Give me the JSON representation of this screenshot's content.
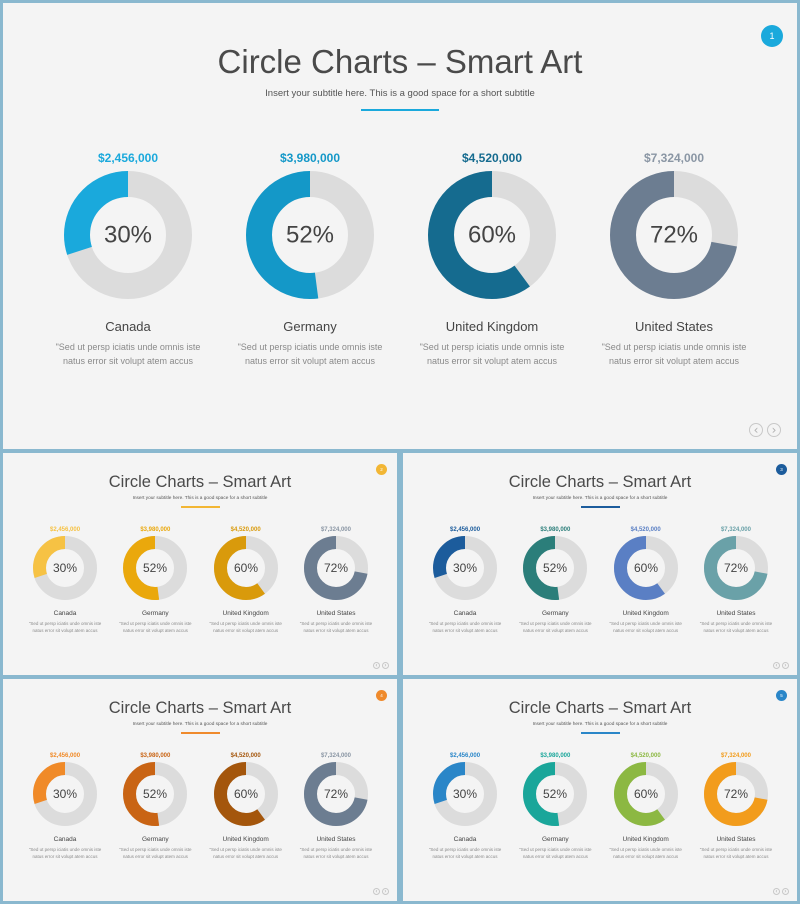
{
  "slides": [
    {
      "id": "main",
      "title": "Circle Charts – Smart Art",
      "subtitle": "Insert your subtitle here. This is a good space for a short subtitle",
      "page_number": "1",
      "accent": "#1aa9dc",
      "cards": [
        {
          "amount": "$2,456,000",
          "percent_label": "30%",
          "percent": 30,
          "country": "Canada",
          "color": "#1aa9dc",
          "amount_color": "#1aa9dc"
        },
        {
          "amount": "$3,980,000",
          "percent_label": "52%",
          "percent": 52,
          "country": "Germany",
          "color": "#1498c8",
          "amount_color": "#1498c8"
        },
        {
          "amount": "$4,520,000",
          "percent_label": "60%",
          "percent": 60,
          "country": "United Kingdom",
          "color": "#156b8f",
          "amount_color": "#156b8f"
        },
        {
          "amount": "$7,324,000",
          "percent_label": "72%",
          "percent": 72,
          "country": "United States",
          "color": "#6c7d91",
          "amount_color": "#8a96a4"
        }
      ]
    },
    {
      "id": "yellow",
      "title": "Circle Charts – Smart Art",
      "subtitle": "Insert your subtitle here. This is a good space for a short subtitle",
      "page_number": "2",
      "accent": "#f2b634",
      "cards": [
        {
          "amount": "$2,456,000",
          "percent_label": "30%",
          "percent": 30,
          "country": "Canada",
          "color": "#f6c244",
          "amount_color": "#f6c244"
        },
        {
          "amount": "$3,980,000",
          "percent_label": "52%",
          "percent": 52,
          "country": "Germany",
          "color": "#eaa80c",
          "amount_color": "#eaa80c"
        },
        {
          "amount": "$4,520,000",
          "percent_label": "60%",
          "percent": 60,
          "country": "United Kingdom",
          "color": "#d99a0b",
          "amount_color": "#d99a0b"
        },
        {
          "amount": "$7,324,000",
          "percent_label": "72%",
          "percent": 72,
          "country": "United States",
          "color": "#6c7d91",
          "amount_color": "#8a96a4"
        }
      ]
    },
    {
      "id": "blue-teal",
      "title": "Circle Charts – Smart Art",
      "subtitle": "Insert your subtitle here. This is a good space for a short subtitle",
      "page_number": "3",
      "accent": "#1c5c9c",
      "cards": [
        {
          "amount": "$2,456,000",
          "percent_label": "30%",
          "percent": 30,
          "country": "Canada",
          "color": "#1c5c9c",
          "amount_color": "#1c5c9c"
        },
        {
          "amount": "$3,980,000",
          "percent_label": "52%",
          "percent": 52,
          "country": "Germany",
          "color": "#2b7e7a",
          "amount_color": "#2b7e7a"
        },
        {
          "amount": "$4,520,000",
          "percent_label": "60%",
          "percent": 60,
          "country": "United Kingdom",
          "color": "#5a7fc4",
          "amount_color": "#5a7fc4"
        },
        {
          "amount": "$7,324,000",
          "percent_label": "72%",
          "percent": 72,
          "country": "United States",
          "color": "#6aa1a8",
          "amount_color": "#6aa1a8"
        }
      ]
    },
    {
      "id": "orange",
      "title": "Circle Charts – Smart Art",
      "subtitle": "Insert your subtitle here. This is a good space for a short subtitle",
      "page_number": "4",
      "accent": "#ef8a2c",
      "cards": [
        {
          "amount": "$2,456,000",
          "percent_label": "30%",
          "percent": 30,
          "country": "Canada",
          "color": "#f08a28",
          "amount_color": "#f08a28"
        },
        {
          "amount": "$3,980,000",
          "percent_label": "52%",
          "percent": 52,
          "country": "Germany",
          "color": "#c96414",
          "amount_color": "#c96414"
        },
        {
          "amount": "$4,520,000",
          "percent_label": "60%",
          "percent": 60,
          "country": "United Kingdom",
          "color": "#a4560c",
          "amount_color": "#a4560c"
        },
        {
          "amount": "$7,324,000",
          "percent_label": "72%",
          "percent": 72,
          "country": "United States",
          "color": "#6c7d91",
          "amount_color": "#8a96a4"
        }
      ]
    },
    {
      "id": "multi",
      "title": "Circle Charts – Smart Art",
      "subtitle": "Insert your subtitle here. This is a good space for a short subtitle",
      "page_number": "5",
      "accent": "#2a86c8",
      "cards": [
        {
          "amount": "$2,456,000",
          "percent_label": "30%",
          "percent": 30,
          "country": "Canada",
          "color": "#2a86c8",
          "amount_color": "#2a86c8"
        },
        {
          "amount": "$3,980,000",
          "percent_label": "52%",
          "percent": 52,
          "country": "Germany",
          "color": "#1aa69a",
          "amount_color": "#1aa69a"
        },
        {
          "amount": "$4,520,000",
          "percent_label": "60%",
          "percent": 60,
          "country": "United Kingdom",
          "color": "#8cb842",
          "amount_color": "#8cb842"
        },
        {
          "amount": "$7,324,000",
          "percent_label": "72%",
          "percent": 72,
          "country": "United States",
          "color": "#f29c1c",
          "amount_color": "#f29c1c"
        }
      ]
    }
  ],
  "description": "\"Sed ut persp iciatis unde omnis iste natus error sit volupt atem accus",
  "track_color": "#dcdcdc",
  "nav": {
    "prev_icon": "chevron-left-icon",
    "next_icon": "chevron-right-icon",
    "prev_glyph": "‹",
    "next_glyph": "›"
  }
}
